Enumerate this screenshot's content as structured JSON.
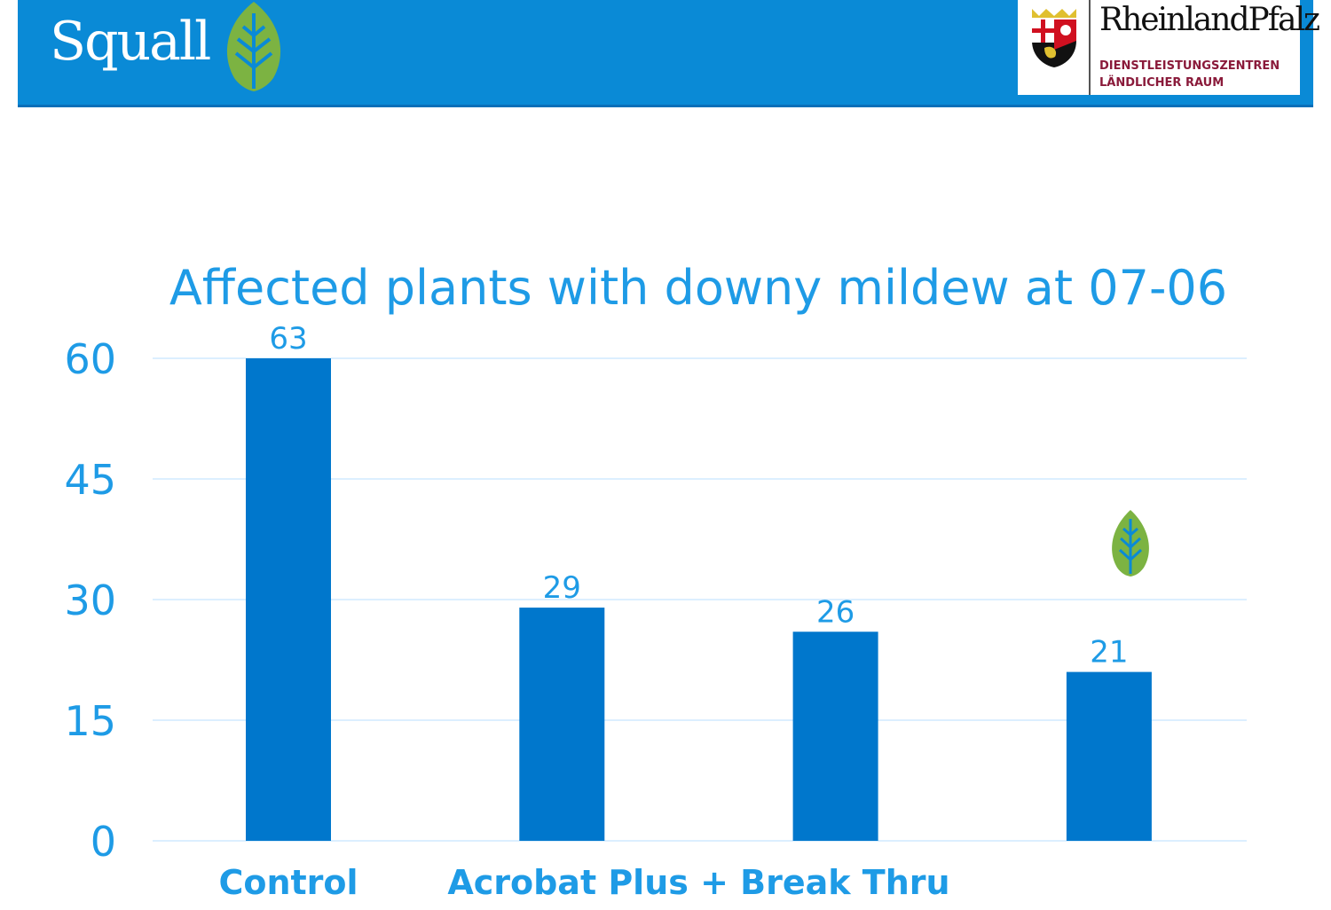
{
  "header": {
    "brand": "Squall",
    "partner_name": "RheinlandPfalz",
    "partner_sub1": "DIENSTLEISTUNGSZENTREN",
    "partner_sub2": "LÄNDLICHER RAUM"
  },
  "colors": {
    "header": "#0a8ad6",
    "bar": "#0077cc",
    "text": "#1e9be6",
    "grid": "#dcefff",
    "leaf": "#7cb342"
  },
  "chart_data": {
    "type": "bar",
    "title": "Affected plants with downy mildew at 07-06",
    "categories": [
      "Control",
      "Acrobat Plus + Break Thru",
      "",
      ""
    ],
    "group_labels": [
      {
        "label": "Control",
        "spans": [
          0
        ]
      },
      {
        "label": "Acrobat Plus + Break Thru",
        "spans": [
          1,
          2
        ]
      }
    ],
    "values": [
      63,
      29,
      26,
      21
    ],
    "data_labels": [
      "63",
      "29",
      "26",
      "21"
    ],
    "yticks": [
      0,
      15,
      30,
      45,
      60
    ],
    "ylim": [
      0,
      60
    ],
    "grid": true,
    "xlabel": "",
    "ylabel": ""
  }
}
